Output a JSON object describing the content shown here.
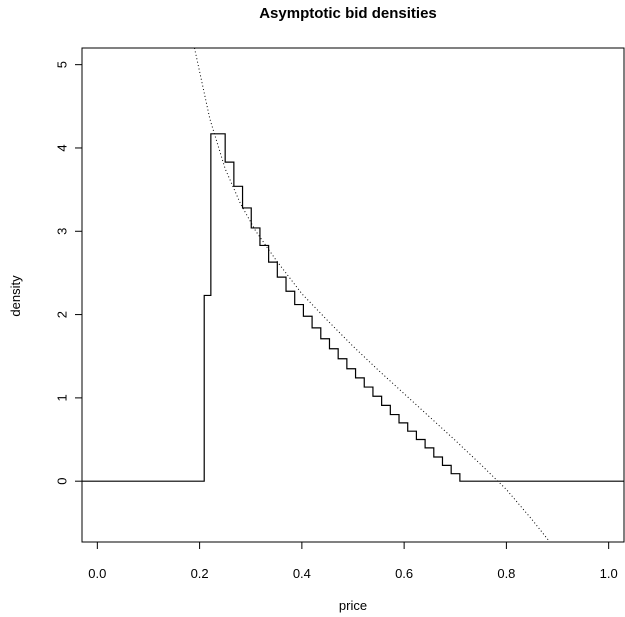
{
  "chart_data": {
    "type": "line",
    "title": "Asymptotic bid densities",
    "xlabel": "price",
    "ylabel": "density",
    "xlim": [
      -0.03,
      1.03
    ],
    "ylim": [
      -0.73,
      5.2
    ],
    "xticks": [
      0.0,
      0.2,
      0.4,
      0.6,
      0.8,
      1.0
    ],
    "xtick_labels": [
      "0.0",
      "0.2",
      "0.4",
      "0.6",
      "0.8",
      "1.0"
    ],
    "yticks": [
      0,
      1,
      2,
      3,
      4,
      5
    ],
    "ytick_labels": [
      "0",
      "1",
      "2",
      "3",
      "4",
      "5"
    ],
    "grid": false,
    "series": [
      {
        "style": "step-solid",
        "x": [
          -0.03,
          0.209,
          0.209,
          0.222,
          0.222,
          0.235,
          0.235,
          0.25,
          0.25,
          0.267,
          0.267,
          0.284,
          0.284,
          0.301,
          0.301,
          0.318,
          0.318,
          0.335,
          0.335,
          0.352,
          0.352,
          0.369,
          0.369,
          0.386,
          0.386,
          0.403,
          0.403,
          0.42,
          0.42,
          0.437,
          0.437,
          0.454,
          0.454,
          0.471,
          0.471,
          0.488,
          0.488,
          0.505,
          0.505,
          0.522,
          0.522,
          0.539,
          0.539,
          0.556,
          0.556,
          0.573,
          0.573,
          0.59,
          0.59,
          0.607,
          0.607,
          0.624,
          0.624,
          0.641,
          0.641,
          0.658,
          0.658,
          0.675,
          0.675,
          0.692,
          0.692,
          0.709,
          0.709,
          0.726,
          0.726,
          0.743,
          0.743,
          0.76,
          0.76,
          0.777,
          0.777,
          0.794,
          0.794,
          1.03
        ],
        "y": [
          0,
          0,
          2.23,
          2.23,
          4.17,
          4.17,
          4.17,
          4.17,
          3.83,
          3.83,
          3.54,
          3.54,
          3.28,
          3.28,
          3.04,
          3.04,
          2.83,
          2.83,
          2.63,
          2.63,
          2.45,
          2.45,
          2.28,
          2.28,
          2.12,
          2.12,
          1.98,
          1.98,
          1.84,
          1.84,
          1.71,
          1.71,
          1.59,
          1.59,
          1.47,
          1.47,
          1.35,
          1.35,
          1.24,
          1.24,
          1.13,
          1.13,
          1.02,
          1.02,
          0.91,
          0.91,
          0.8,
          0.8,
          0.7,
          0.7,
          0.6,
          0.6,
          0.5,
          0.5,
          0.4,
          0.4,
          0.29,
          0.29,
          0.19,
          0.19,
          0.09,
          0.09,
          0.0,
          0.0,
          0.0,
          0.0,
          0.0,
          0.0,
          0.0,
          0.0,
          0.0,
          0.0,
          0.0,
          0.0
        ]
      },
      {
        "style": "dotted",
        "x": [
          0.19,
          0.22,
          0.25,
          0.28,
          0.31,
          0.35,
          0.4,
          0.45,
          0.5,
          0.55,
          0.6,
          0.65,
          0.7,
          0.75,
          0.8,
          0.85,
          0.885
        ],
        "y": [
          5.2,
          4.35,
          3.75,
          3.33,
          3.0,
          2.65,
          2.25,
          1.93,
          1.62,
          1.33,
          1.05,
          0.77,
          0.49,
          0.2,
          -0.1,
          -0.46,
          -0.73
        ]
      }
    ]
  }
}
